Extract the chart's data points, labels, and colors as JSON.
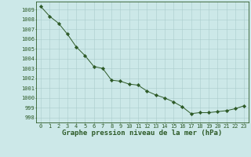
{
  "x": [
    0,
    1,
    2,
    3,
    4,
    5,
    6,
    7,
    8,
    9,
    10,
    11,
    12,
    13,
    14,
    15,
    16,
    17,
    18,
    19,
    20,
    21,
    22,
    23
  ],
  "y": [
    1009.3,
    1008.3,
    1007.6,
    1006.5,
    1005.2,
    1004.3,
    1003.2,
    1003.0,
    1001.8,
    1001.7,
    1001.4,
    1001.3,
    1000.7,
    1000.3,
    1000.0,
    999.6,
    999.1,
    998.4,
    998.5,
    998.5,
    998.6,
    998.7,
    998.9,
    999.2
  ],
  "line_color": "#2d5a27",
  "marker": "D",
  "marker_size": 2.2,
  "bg_color": "#cce8e8",
  "grid_color": "#aacccc",
  "title": "Graphe pression niveau de la mer (hPa)",
  "xlim": [
    -0.5,
    23.5
  ],
  "ylim": [
    997.5,
    1009.8
  ],
  "yticks": [
    998,
    999,
    1000,
    1001,
    1002,
    1003,
    1004,
    1005,
    1006,
    1007,
    1008,
    1009
  ],
  "xticks": [
    0,
    1,
    2,
    3,
    4,
    5,
    6,
    7,
    8,
    9,
    10,
    11,
    12,
    13,
    14,
    15,
    16,
    17,
    18,
    19,
    20,
    21,
    22,
    23
  ],
  "xtick_labels": [
    "0",
    "1",
    "2",
    "3",
    "4",
    "5",
    "6",
    "7",
    "8",
    "9",
    "10",
    "11",
    "12",
    "13",
    "14",
    "15",
    "16",
    "17",
    "18",
    "19",
    "20",
    "21",
    "22",
    "23"
  ],
  "title_fontsize": 6.5,
  "tick_fontsize": 5.0,
  "line_color_str": "#2d5a27",
  "border_color": "#2d5a27"
}
